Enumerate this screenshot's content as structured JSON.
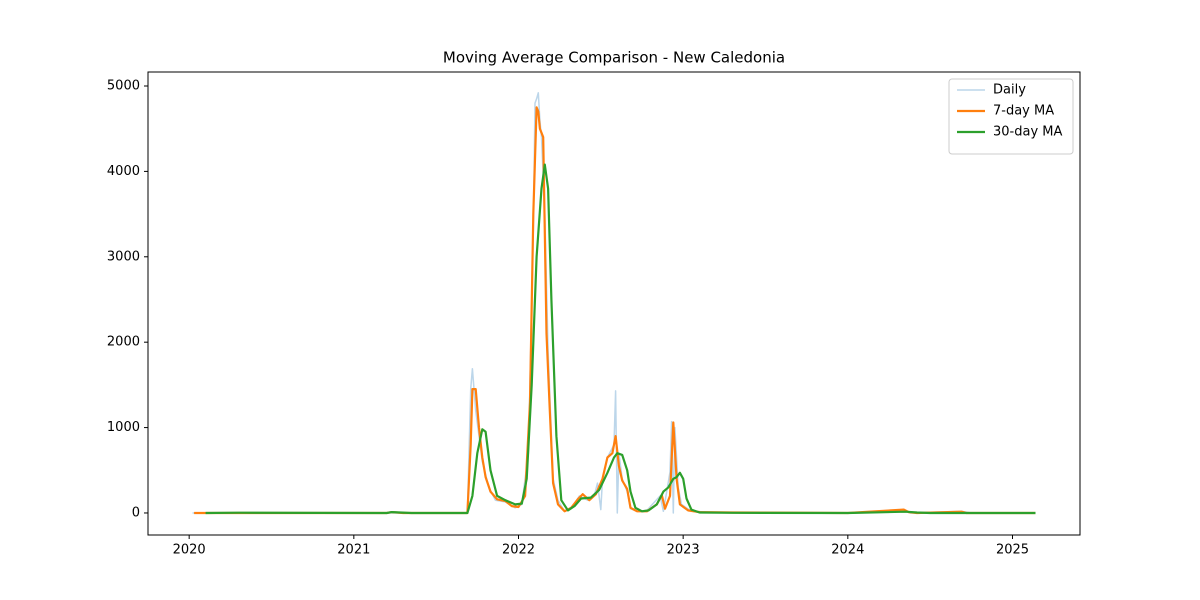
{
  "chart_data": {
    "type": "line",
    "title": "Moving Average Comparison - New Caledonia",
    "xlim": [
      2019.75,
      2025.41
    ],
    "xticks": [
      2020,
      2021,
      2022,
      2023,
      2024,
      2025
    ],
    "ylim": [
      -258,
      5164
    ],
    "yticks": [
      0,
      1000,
      2000,
      3000,
      4000,
      5000
    ],
    "grid": false,
    "legend": "upper right",
    "series": [
      {
        "name": "Daily",
        "color": "#bcd6ea",
        "width": 1.5,
        "x": [
          2020.02,
          2021.69,
          2021.71,
          2021.72,
          2021.74,
          2021.76,
          2021.78,
          2021.82,
          2021.86,
          2021.92,
          2021.98,
          2022.02,
          2022.06,
          2022.09,
          2022.1,
          2022.11,
          2022.12,
          2022.13,
          2022.14,
          2022.16,
          2022.18,
          2022.21,
          2022.24,
          2022.28,
          2022.33,
          2022.37,
          2022.42,
          2022.46,
          2022.48,
          2022.5,
          2022.51,
          2022.54,
          2022.58,
          2022.59,
          2022.6,
          2022.61,
          2022.63,
          2022.66,
          2022.68,
          2022.72,
          2022.78,
          2022.86,
          2022.88,
          2022.92,
          2022.93,
          2022.94,
          2022.95,
          2022.97,
          2022.99,
          2023.05,
          2023.2,
          2024.0,
          2024.34,
          2024.38,
          2024.69,
          2024.75,
          2025.14
        ],
        "values": [
          0,
          0,
          1450,
          1690,
          1200,
          900,
          600,
          300,
          150,
          130,
          60,
          100,
          700,
          3300,
          4800,
          4850,
          4920,
          4600,
          4400,
          3500,
          1900,
          400,
          150,
          20,
          80,
          200,
          150,
          200,
          350,
          40,
          400,
          650,
          800,
          1430,
          0,
          700,
          400,
          250,
          50,
          20,
          30,
          200,
          20,
          480,
          1070,
          0,
          1000,
          300,
          100,
          20,
          5,
          0,
          40,
          0,
          20,
          0,
          0
        ]
      },
      {
        "name": "7-day MA",
        "color": "#ff7f0e",
        "width": 2.2,
        "x": [
          2020.03,
          2021.2,
          2021.23,
          2021.3,
          2021.69,
          2021.71,
          2021.72,
          2021.74,
          2021.76,
          2021.78,
          2021.8,
          2021.83,
          2021.87,
          2021.92,
          2021.96,
          2022.0,
          2022.04,
          2022.07,
          2022.09,
          2022.11,
          2022.12,
          2022.13,
          2022.15,
          2022.17,
          2022.19,
          2022.21,
          2022.24,
          2022.28,
          2022.32,
          2022.36,
          2022.39,
          2022.43,
          2022.47,
          2022.51,
          2022.54,
          2022.57,
          2022.59,
          2022.61,
          2022.63,
          2022.66,
          2022.68,
          2022.72,
          2022.78,
          2022.84,
          2022.87,
          2022.89,
          2022.92,
          2022.94,
          2022.96,
          2022.98,
          2023.03,
          2023.1,
          2023.3,
          2024.0,
          2024.34,
          2024.37,
          2024.42,
          2024.69,
          2024.72,
          2025.14
        ],
        "values": [
          0,
          0,
          10,
          0,
          0,
          800,
          1450,
          1450,
          1000,
          650,
          420,
          250,
          160,
          140,
          80,
          70,
          200,
          1300,
          3500,
          4750,
          4700,
          4500,
          4400,
          2100,
          1200,
          350,
          100,
          20,
          60,
          160,
          220,
          150,
          220,
          400,
          650,
          700,
          900,
          550,
          380,
          280,
          60,
          20,
          20,
          100,
          210,
          50,
          200,
          1060,
          400,
          100,
          30,
          10,
          5,
          0,
          40,
          10,
          0,
          15,
          0,
          0
        ]
      },
      {
        "name": "30-day MA",
        "color": "#2ca02c",
        "width": 2.2,
        "x": [
          2020.1,
          2020.3,
          2021.2,
          2021.23,
          2021.35,
          2021.69,
          2021.72,
          2021.75,
          2021.78,
          2021.8,
          2021.83,
          2021.87,
          2021.92,
          2021.98,
          2022.02,
          2022.05,
          2022.08,
          2022.11,
          2022.14,
          2022.16,
          2022.18,
          2022.2,
          2022.23,
          2022.26,
          2022.3,
          2022.34,
          2022.38,
          2022.44,
          2022.49,
          2022.54,
          2022.58,
          2022.6,
          2022.63,
          2022.66,
          2022.68,
          2022.71,
          2022.75,
          2022.79,
          2022.84,
          2022.88,
          2022.91,
          2022.94,
          2022.96,
          2022.98,
          2023.0,
          2023.02,
          2023.05,
          2023.1,
          2023.3,
          2024.0,
          2024.35,
          2024.42,
          2024.5,
          2025.14
        ],
        "values": [
          0,
          3,
          0,
          10,
          0,
          0,
          200,
          700,
          980,
          950,
          500,
          200,
          150,
          100,
          110,
          400,
          1500,
          3000,
          3800,
          4080,
          3800,
          2500,
          900,
          150,
          30,
          80,
          170,
          180,
          270,
          470,
          650,
          700,
          680,
          500,
          250,
          60,
          20,
          30,
          100,
          250,
          300,
          400,
          420,
          470,
          400,
          170,
          40,
          5,
          2,
          0,
          15,
          5,
          0,
          0
        ]
      }
    ]
  }
}
